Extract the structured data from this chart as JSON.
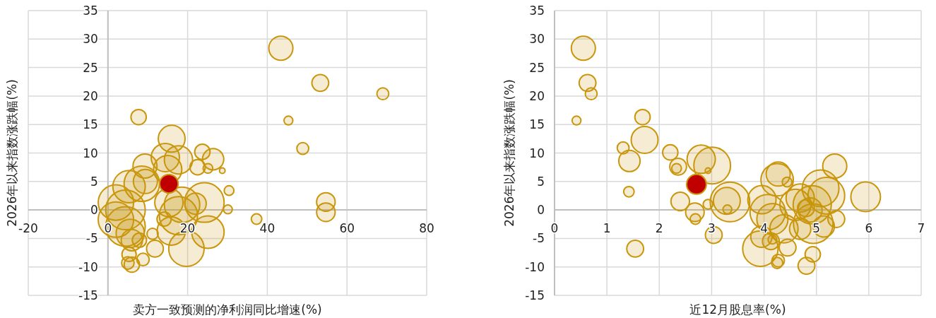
{
  "chart_data": [
    {
      "type": "bubble",
      "xlabel": "卖方一致预测的净利润同比增速(%)",
      "ylabel": "2026年以来指数涨跌幅(%)",
      "xlim": [
        -20,
        80
      ],
      "xticks": [
        -20,
        0,
        20,
        40,
        60,
        80
      ],
      "ylim": [
        -15,
        35
      ],
      "yticks": [
        -15,
        -10,
        -5,
        0,
        5,
        10,
        15,
        20,
        25,
        30,
        35
      ],
      "grid": true,
      "series": [
        {
          "color": "#c9960c",
          "x": [
            7.7,
            16.0,
            17.7,
            23.7,
            26.4,
            22.5,
            25.1,
            28.7,
            9.3,
            14.4,
            15.0,
            8.5,
            5.3,
            9.4,
            2.0,
            4.4,
            2.0,
            4.4,
            5.6,
            6.0,
            7.9,
            5.3,
            5.0,
            6.0,
            8.8,
            11.8,
            11.2,
            15.3,
            14.1,
            17.7,
            18.6,
            15.9,
            24.2,
            22.0,
            25.1,
            19.7,
            30.4,
            30.1,
            43.4,
            53.3,
            69.0,
            45.3,
            48.9,
            54.7,
            54.7,
            37.3
          ],
          "values": [
            16.3,
            12.5,
            8.8,
            10.2,
            8.9,
            7.5,
            7.3,
            6.9,
            7.7,
            9.2,
            7.1,
            4.6,
            4.1,
            5.0,
            1.3,
            0.0,
            -1.7,
            -2.9,
            -4.1,
            -5.3,
            -5.3,
            -7.8,
            -9.3,
            -9.6,
            -8.7,
            -6.8,
            -4.2,
            1.3,
            -1.6,
            -1.0,
            0.9,
            -3.7,
            1.3,
            1.1,
            -3.9,
            -6.8,
            3.4,
            0.1,
            28.4,
            22.3,
            20.4,
            15.7,
            10.8,
            1.4,
            -0.4,
            -1.6
          ],
          "sizes": [
            0.15,
            0.46,
            0.51,
            0.15,
            0.29,
            0.15,
            0.06,
            0.02,
            0.37,
            0.51,
            0.51,
            0.8,
            0.67,
            0.37,
            0.8,
            1,
            0.8,
            1,
            0.51,
            0.29,
            0.13,
            0.13,
            0.1,
            0.15,
            0.1,
            0.18,
            0.08,
            0.51,
            0.13,
            0.93,
            0.8,
            0.51,
            1,
            0.29,
            0.67,
            0.8,
            0.06,
            0.05,
            0.37,
            0.18,
            0.09,
            0.05,
            0.09,
            0.22,
            0.22,
            0.07
          ]
        },
        {
          "color": "#c00000",
          "x": [
            15.3
          ],
          "values": [
            4.6
          ],
          "sizes": [
            0.22
          ]
        }
      ]
    },
    {
      "type": "bubble",
      "xlabel": "近12月股息率(%)",
      "ylabel": "2026年以来指数涨跌幅(%)",
      "xlim": [
        0,
        7
      ],
      "xticks": [
        0,
        1,
        2,
        3,
        4,
        5,
        6,
        7
      ],
      "ylim": [
        -15,
        35
      ],
      "yticks": [
        -15,
        -10,
        -5,
        0,
        5,
        10,
        15,
        20,
        25,
        30,
        35
      ],
      "grid": true,
      "series": [
        {
          "color": "#c9960c",
          "x": [
            0.55,
            0.63,
            0.7,
            0.42,
            1.68,
            1.72,
            1.31,
            1.43,
            1.42,
            1.54,
            2.21,
            2.36,
            2.33,
            2.8,
            3.01,
            2.93,
            2.4,
            2.68,
            2.69,
            2.93,
            3.04,
            3.35,
            3.29,
            3.3,
            4.27,
            4.25,
            4.44,
            5.35,
            5.94,
            3.96,
            4.07,
            4.16,
            3.93,
            3.95,
            4.13,
            4.16,
            4.27,
            4.25,
            4.45,
            4.38,
            4.6,
            4.92,
            5.08,
            5.19,
            4.94,
            4.69,
            4.88,
            4.8,
            5.38,
            5.14,
            4.93,
            4.81,
            4.69
          ],
          "values": [
            28.4,
            22.3,
            20.4,
            15.7,
            16.3,
            12.3,
            10.9,
            8.6,
            3.2,
            -6.8,
            10.1,
            7.6,
            7.3,
            8.9,
            7.8,
            6.9,
            1.5,
            -0.4,
            -1.6,
            1.0,
            -4.4,
            1.4,
            1.6,
            0.1,
            6.3,
            5.3,
            4.9,
            7.7,
            2.3,
            1.8,
            -0.4,
            -1.6,
            -6.8,
            -4.7,
            -5.5,
            -5.2,
            -8.9,
            -9.3,
            -6.6,
            -3.3,
            0.9,
            0.9,
            3.8,
            2.5,
            -2.4,
            -3.3,
            0.0,
            0.3,
            -1.6,
            -2.9,
            -7.8,
            -9.8,
            2.1
          ],
          "sizes": [
            0.37,
            0.18,
            0.09,
            0.05,
            0.15,
            0.46,
            0.09,
            0.29,
            0.07,
            0.18,
            0.15,
            0.18,
            0.06,
            0.51,
            0.86,
            0.02,
            0.22,
            0.22,
            0.07,
            0.06,
            0.18,
            1,
            0.46,
            0.05,
            0.37,
            0.67,
            0.06,
            0.37,
            0.56,
            0.51,
            0.8,
            0.62,
            0.8,
            0.29,
            0.18,
            0.05,
            0.1,
            0.08,
            0.18,
            0.51,
            0.62,
            0.93,
            0.86,
            0.86,
            1,
            0.29,
            0.37,
            0.18,
            0.18,
            0.29,
            0.15,
            0.18,
            0.51
          ]
        },
        {
          "color": "#c00000",
          "x": [
            2.71
          ],
          "values": [
            4.5
          ],
          "sizes": [
            0.25
          ]
        }
      ]
    }
  ]
}
